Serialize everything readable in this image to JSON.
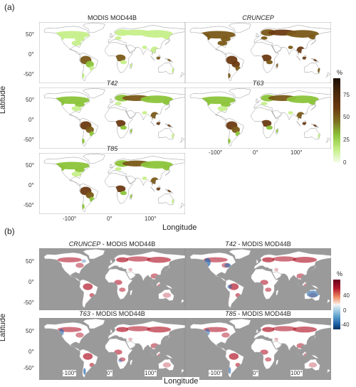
{
  "part_a": {
    "label": "(a)",
    "panels": [
      {
        "id": "modis",
        "title_italic": "",
        "title_plain": "MODIS MOD44B"
      },
      {
        "id": "cruncep",
        "title_italic": "CRUNCEP",
        "title_plain": ""
      },
      {
        "id": "t42",
        "title_italic": "T42",
        "title_plain": ""
      },
      {
        "id": "t63",
        "title_italic": "T63",
        "title_plain": ""
      },
      {
        "id": "t85",
        "title_italic": "T85",
        "title_plain": ""
      }
    ],
    "y_ticks": [
      "50°",
      "0°",
      "-50°"
    ],
    "x_ticks": [
      "-100°",
      "0°",
      "100°"
    ],
    "ylabel": "Latitude",
    "xlabel": "Longitude",
    "colorbar": {
      "title": "%",
      "ticks": [
        "75",
        "50",
        "25",
        "0"
      ]
    }
  },
  "part_b": {
    "label": "(b)",
    "panels": [
      {
        "id": "cruncep_diff",
        "title_italic": "CRUNCEP",
        "title_plain": " - MODIS MOD44B"
      },
      {
        "id": "t42_diff",
        "title_italic": "T42",
        "title_plain": " - MODIS MOD44B"
      },
      {
        "id": "t63_diff",
        "title_italic": "T63",
        "title_plain": " - MODIS MOD44B"
      },
      {
        "id": "t85_diff",
        "title_italic": "T85",
        "title_plain": " - MODIS MOD44B"
      }
    ],
    "y_ticks": [
      "50°",
      "0°",
      "-50°"
    ],
    "x_ticks": [
      "-100°",
      "0°",
      "100°"
    ],
    "ylabel": "Latitude",
    "xlabel": "Longitude",
    "colorbar": {
      "title": "%",
      "ticks": [
        "40",
        "0",
        "-40"
      ]
    }
  },
  "colors": {
    "forest_low": "#c6ef8a",
    "forest_mid": "#8cc43a",
    "forest_high": "#6b3a12",
    "forest_max": "#1c1006",
    "diff_pos": "#b2182b",
    "diff_neg": "#2166ac",
    "ocean_b": "#9a9a9a",
    "land_line": "#9e9e9e"
  }
}
